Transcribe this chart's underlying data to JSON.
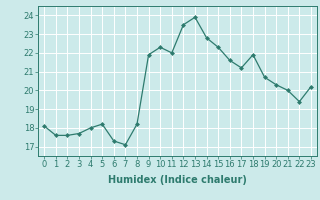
{
  "x": [
    0,
    1,
    2,
    3,
    4,
    5,
    6,
    7,
    8,
    9,
    10,
    11,
    12,
    13,
    14,
    15,
    16,
    17,
    18,
    19,
    20,
    21,
    22,
    23
  ],
  "y": [
    18.1,
    17.6,
    17.6,
    17.7,
    18.0,
    18.2,
    17.3,
    17.1,
    18.2,
    21.9,
    22.3,
    22.0,
    23.5,
    23.9,
    22.8,
    22.3,
    21.6,
    21.2,
    21.9,
    20.7,
    20.3,
    20.0,
    19.4,
    20.2
  ],
  "line_color": "#2e7b6e",
  "marker": "D",
  "marker_size": 2,
  "bg_color": "#cceaea",
  "grid_color": "#ffffff",
  "xlabel": "Humidex (Indice chaleur)",
  "xlim": [
    -0.5,
    23.5
  ],
  "ylim": [
    16.5,
    24.5
  ],
  "yticks": [
    17,
    18,
    19,
    20,
    21,
    22,
    23,
    24
  ],
  "xticks": [
    0,
    1,
    2,
    3,
    4,
    5,
    6,
    7,
    8,
    9,
    10,
    11,
    12,
    13,
    14,
    15,
    16,
    17,
    18,
    19,
    20,
    21,
    22,
    23
  ],
  "xlabel_fontsize": 7,
  "tick_fontsize": 6,
  "tick_color": "#2e7b6e",
  "spine_color": "#2e7b6e"
}
